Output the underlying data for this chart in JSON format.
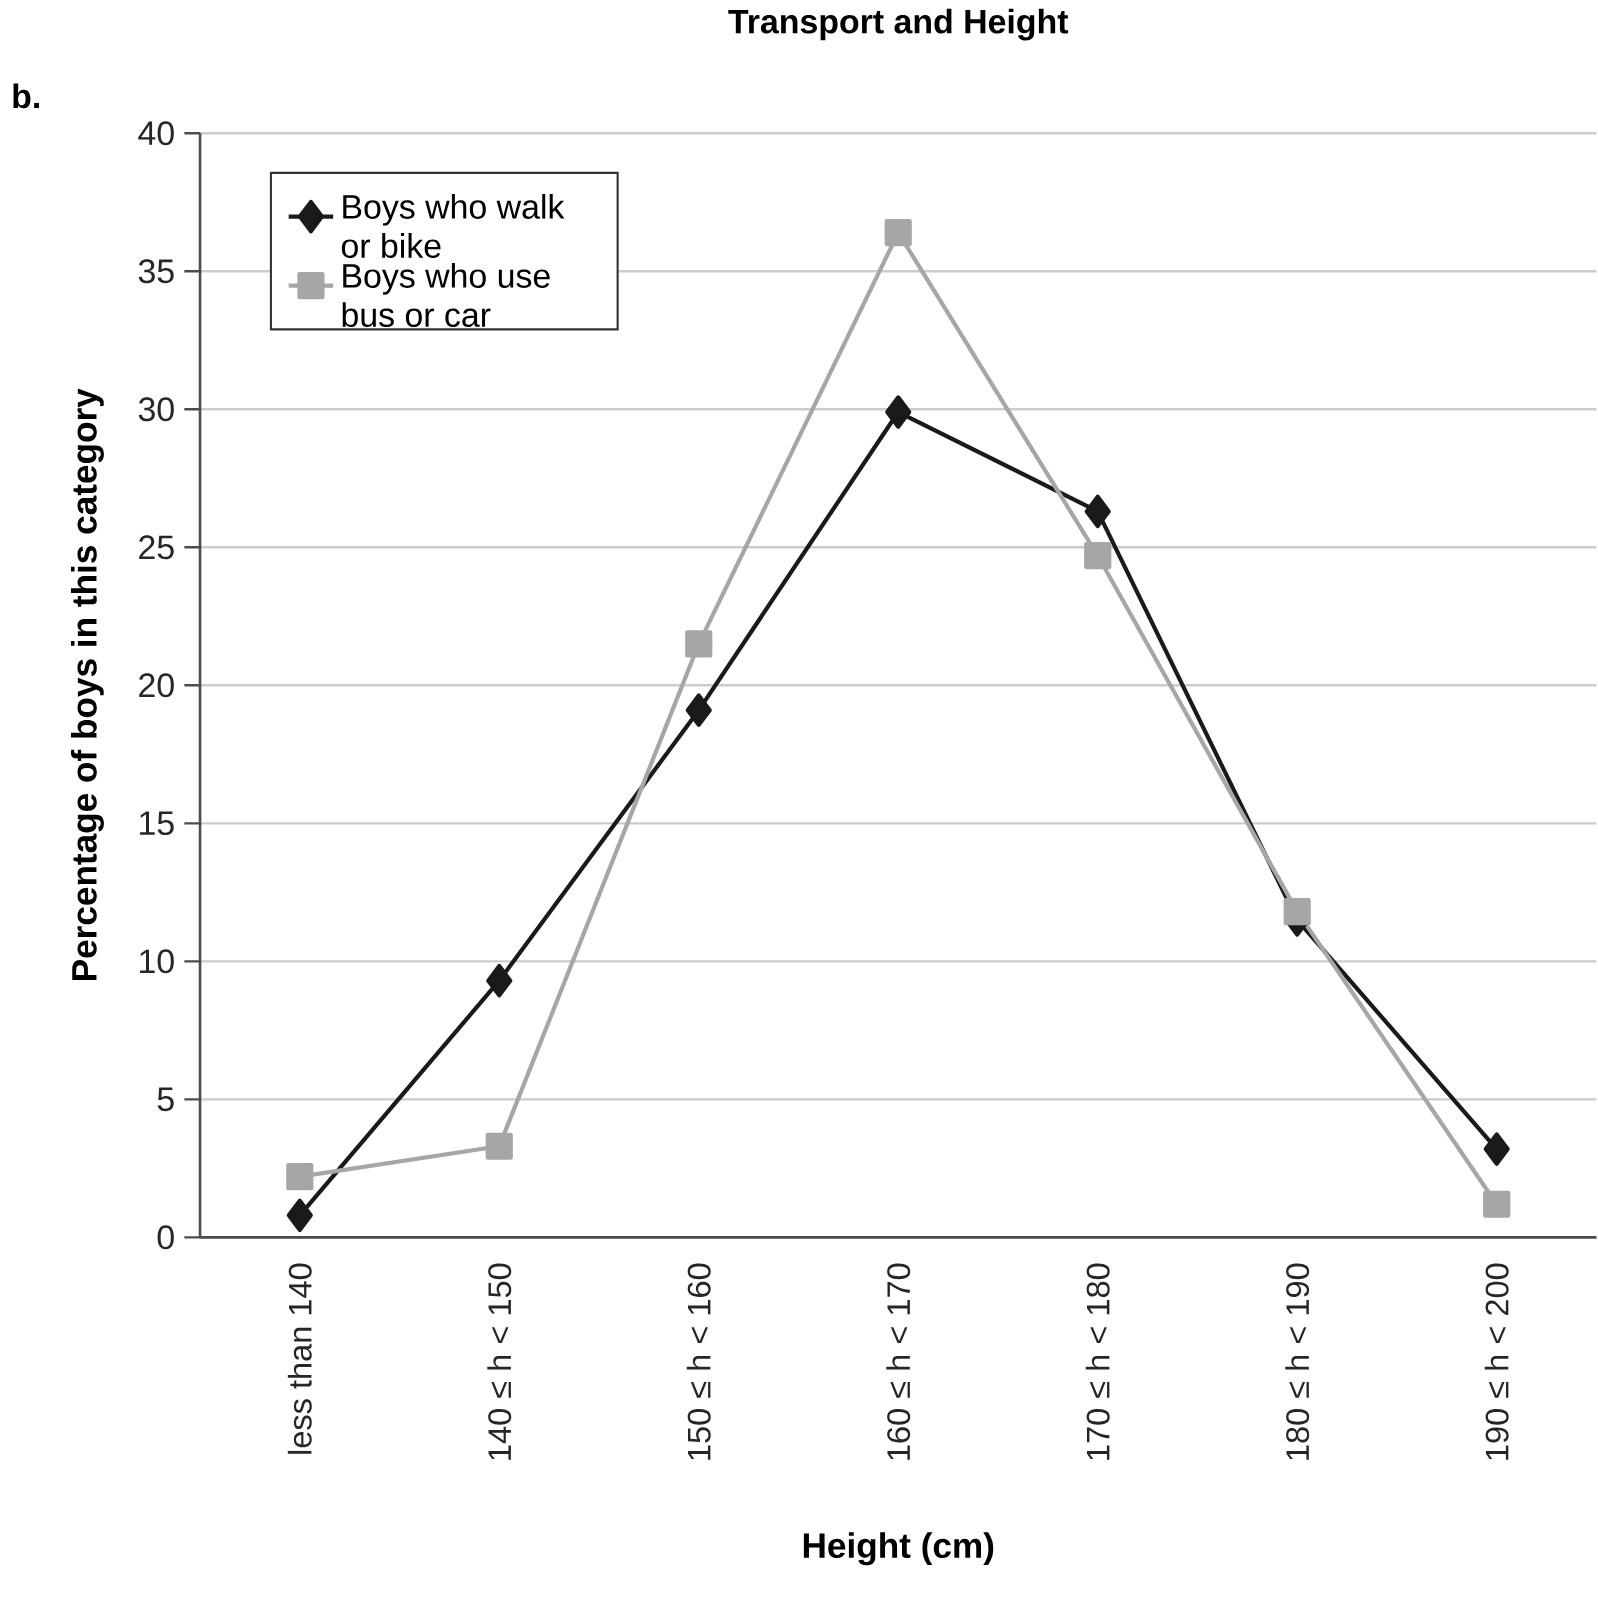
{
  "chart_data": {
    "type": "line",
    "title": "Transport and Height",
    "xlabel": "Height (cm)",
    "ylabel": "Percentage of boys in this category",
    "annotations": [
      "b."
    ],
    "categories": [
      "less than 140",
      "140 ≤ h < 150",
      "150 ≤ h < 160",
      "160 ≤ h < 170",
      "170 ≤ h < 180",
      "180 ≤ h < 190",
      "190 ≤ h < 200"
    ],
    "series": [
      {
        "name": "Boys who walk or bike",
        "color": "#1a1a1a",
        "marker": "diamond",
        "values": [
          0.8,
          9.3,
          19.1,
          29.9,
          26.3,
          11.5,
          3.2
        ]
      },
      {
        "name": "Boys who use bus or car",
        "color": "#a6a6a6",
        "marker": "square",
        "values": [
          2.2,
          3.3,
          21.5,
          36.4,
          24.7,
          11.8,
          1.2
        ]
      }
    ],
    "ylim": [
      0,
      40
    ],
    "yticks": [
      0,
      5,
      10,
      15,
      20,
      25,
      30,
      35,
      40
    ],
    "grid": "y",
    "legend": "top left",
    "line_style": "solid"
  }
}
